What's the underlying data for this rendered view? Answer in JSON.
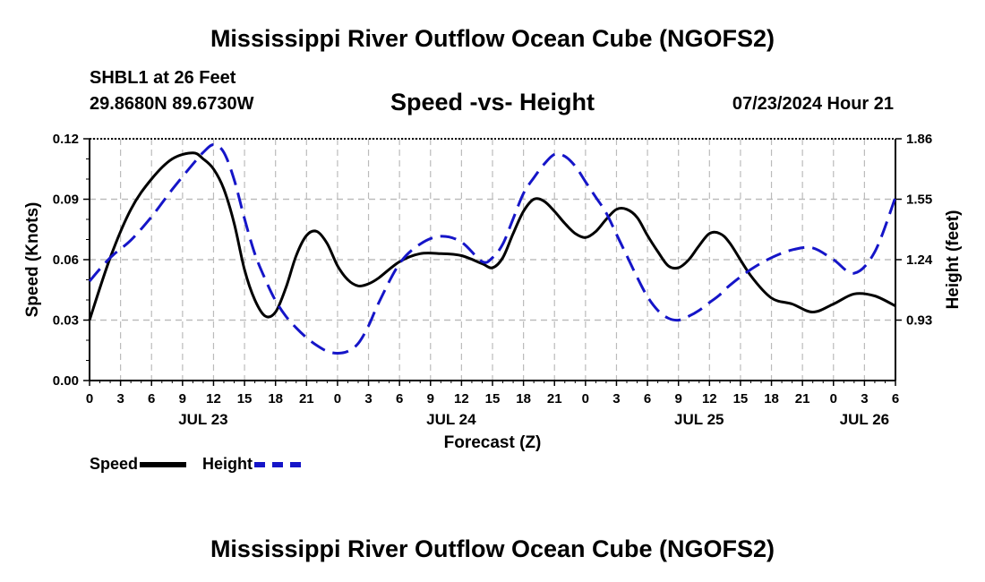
{
  "header": {
    "title": "Mississippi River Outflow Ocean Cube (NGOFS2)",
    "station": "SHBL1 at 26 Feet",
    "coords": "29.8680N  89.6730W",
    "subtitle": "Speed -vs- Height",
    "run_time": "07/23/2024 Hour 21"
  },
  "footer": {
    "title": "Mississippi River Outflow Ocean Cube (NGOFS2)"
  },
  "legend": {
    "speed_label": "Speed",
    "height_label": "Height"
  },
  "colors": {
    "speed": "#000000",
    "height": "#1515c8",
    "grid": "#bbbbbb"
  },
  "chart_data": {
    "type": "line",
    "title": "Speed -vs- Height",
    "xlabel": "Forecast (Z)",
    "ylabel": "Speed (Knots)",
    "y2label": "Height (feet)",
    "xlim": [
      0,
      78
    ],
    "ylim": [
      0,
      0.12
    ],
    "y2lim": [
      0.62,
      1.86
    ],
    "x_ticks": [
      0,
      3,
      6,
      9,
      12,
      15,
      18,
      21,
      24,
      27,
      30,
      33,
      36,
      39,
      42,
      45,
      48,
      51,
      54,
      57,
      60,
      63,
      66,
      69,
      72,
      75,
      78
    ],
    "x_tick_labels": [
      "0",
      "3",
      "6",
      "9",
      "12",
      "15",
      "18",
      "21",
      "0",
      "3",
      "6",
      "9",
      "12",
      "15",
      "18",
      "21",
      "0",
      "3",
      "6",
      "9",
      "12",
      "15",
      "18",
      "21",
      "0",
      "3",
      "6"
    ],
    "date_labels": [
      {
        "x": 11,
        "label": "JUL 23"
      },
      {
        "x": 35,
        "label": "JUL 24"
      },
      {
        "x": 59,
        "label": "JUL 25"
      },
      {
        "x": 75,
        "label": "JUL 26"
      }
    ],
    "y_ticks": [
      0,
      0.03,
      0.06,
      0.09,
      0.12
    ],
    "y_tick_labels": [
      "0.00",
      "0.03",
      "0.06",
      "0.09",
      "0.12"
    ],
    "y2_ticks": [
      0.93,
      1.24,
      1.55,
      1.86
    ],
    "y2_tick_labels": [
      "0.93",
      "1.24",
      "1.55",
      "1.86"
    ],
    "grid": true,
    "legend_position": "bottom-left",
    "series": [
      {
        "name": "Speed",
        "axis": "left",
        "style": "solid",
        "x": [
          0,
          2,
          4,
          6,
          8,
          10,
          11,
          12,
          13,
          14,
          15,
          16,
          17,
          18,
          19,
          20,
          21,
          22,
          23,
          24,
          25,
          26,
          27,
          28,
          30,
          32,
          34,
          36,
          38,
          39,
          40,
          41,
          42,
          43,
          44,
          45,
          46,
          47,
          48,
          49,
          50,
          51,
          52,
          53,
          54,
          55,
          56,
          57,
          58,
          59,
          60,
          61,
          62,
          64,
          66,
          68,
          70,
          72,
          74,
          76,
          78
        ],
        "values": [
          0.03,
          0.061,
          0.085,
          0.1,
          0.11,
          0.113,
          0.11,
          0.105,
          0.095,
          0.078,
          0.055,
          0.04,
          0.032,
          0.034,
          0.046,
          0.062,
          0.072,
          0.074,
          0.068,
          0.057,
          0.05,
          0.047,
          0.048,
          0.051,
          0.059,
          0.063,
          0.063,
          0.062,
          0.058,
          0.056,
          0.061,
          0.073,
          0.084,
          0.09,
          0.089,
          0.084,
          0.078,
          0.073,
          0.071,
          0.074,
          0.08,
          0.085,
          0.085,
          0.081,
          0.072,
          0.064,
          0.057,
          0.056,
          0.06,
          0.067,
          0.073,
          0.073,
          0.068,
          0.052,
          0.041,
          0.038,
          0.034,
          0.038,
          0.043,
          0.042,
          0.037
        ]
      },
      {
        "name": "Height",
        "axis": "right",
        "style": "dashed",
        "x": [
          0,
          2,
          4,
          6,
          8,
          10,
          11,
          12,
          13,
          14,
          15,
          16,
          17,
          18,
          19,
          20,
          21,
          22,
          23,
          24,
          25,
          26,
          27,
          28,
          30,
          32,
          34,
          36,
          38,
          39,
          40,
          41,
          42,
          43,
          44,
          45,
          46,
          47,
          48,
          49,
          50,
          51,
          52,
          53,
          54,
          55,
          56,
          57,
          58,
          59,
          60,
          61,
          62,
          64,
          66,
          68,
          70,
          72,
          74,
          76,
          78
        ],
        "values": [
          1.13,
          1.25,
          1.34,
          1.46,
          1.6,
          1.73,
          1.79,
          1.83,
          1.79,
          1.65,
          1.45,
          1.27,
          1.14,
          1.03,
          0.95,
          0.89,
          0.84,
          0.8,
          0.77,
          0.76,
          0.77,
          0.81,
          0.9,
          1.02,
          1.22,
          1.32,
          1.36,
          1.33,
          1.23,
          1.25,
          1.32,
          1.45,
          1.58,
          1.66,
          1.73,
          1.78,
          1.77,
          1.72,
          1.64,
          1.56,
          1.48,
          1.37,
          1.26,
          1.15,
          1.05,
          0.98,
          0.94,
          0.93,
          0.95,
          0.98,
          1.02,
          1.06,
          1.11,
          1.19,
          1.25,
          1.29,
          1.3,
          1.24,
          1.17,
          1.28,
          1.56
        ]
      }
    ]
  }
}
